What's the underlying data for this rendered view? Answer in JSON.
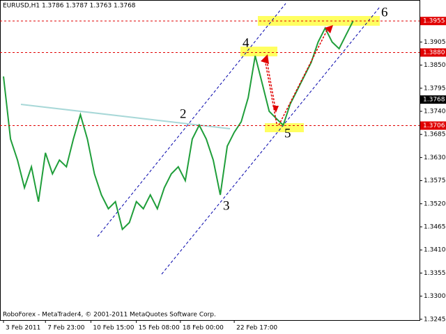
{
  "chart_data": {
    "type": "line",
    "title": "EURUSD,H1  1.3786 1.3787 1.3763 1.3768",
    "footer": "RoboForex - MetaTrader4, © 2001-2011 MetaQuotes Software Corp.",
    "color": "#1f9e3a",
    "values": [
      1.3823,
      1.3674,
      1.3624,
      1.3558,
      1.3608,
      1.3525,
      1.3641,
      1.3591,
      1.3624,
      1.3608,
      1.3674,
      1.3732,
      1.3674,
      1.3591,
      1.3541,
      1.3508,
      1.3525,
      1.3459,
      1.3475,
      1.3525,
      1.3508,
      1.3541,
      1.3508,
      1.3558,
      1.3591,
      1.3608,
      1.3575,
      1.3674,
      1.3707,
      1.3674,
      1.3624,
      1.3541,
      1.3657,
      1.369,
      1.3715,
      1.3773,
      1.3872,
      1.3806,
      1.374,
      1.3723,
      1.3707,
      1.3757,
      1.379,
      1.3823,
      1.3856,
      1.3905,
      1.3938,
      1.3905,
      1.3889,
      1.3922,
      1.3955
    ],
    "xlim": [
      -0.5,
      59.5
    ],
    "xticks": [
      {
        "value": 0,
        "label": "3 Feb 2011"
      },
      {
        "value": 6,
        "label": "7 Feb 23:00"
      },
      {
        "value": 12.5,
        "label": "10 Feb 15:00"
      },
      {
        "value": 19,
        "label": "15 Feb 08:00"
      },
      {
        "value": 25.3,
        "label": "18 Feb 00:00"
      },
      {
        "value": 33,
        "label": "22 Feb 17:00"
      }
    ],
    "ylim": [
      1.3243,
      1.4005
    ],
    "yticks": [
      1.3905,
      {
        "value": 1.385,
        "label": "1.3850"
      },
      1.3795,
      {
        "value": 1.374,
        "label": "1.3740"
      },
      1.3685,
      {
        "value": 1.363,
        "label": "1.3630"
      },
      1.3575,
      {
        "value": 1.352,
        "label": "1.3520"
      },
      1.3465,
      {
        "value": 1.341,
        "label": "1.3410"
      },
      1.3355,
      {
        "value": 1.33,
        "label": "1.3300"
      },
      1.3245
    ],
    "levels": [
      {
        "value": 1.3955,
        "label": "1.3955",
        "color": "#e00000",
        "line": true
      },
      {
        "value": 1.388,
        "label": "1.3880",
        "color": "#e00000",
        "line": true
      },
      {
        "value": 1.3768,
        "label": "1.3768",
        "color": "#000000",
        "line": false
      },
      {
        "value": 1.3706,
        "label": "1.3706",
        "color": "#e00000",
        "line": true
      }
    ],
    "annotations": [
      "2",
      "3",
      "4",
      "5",
      "6"
    ]
  }
}
